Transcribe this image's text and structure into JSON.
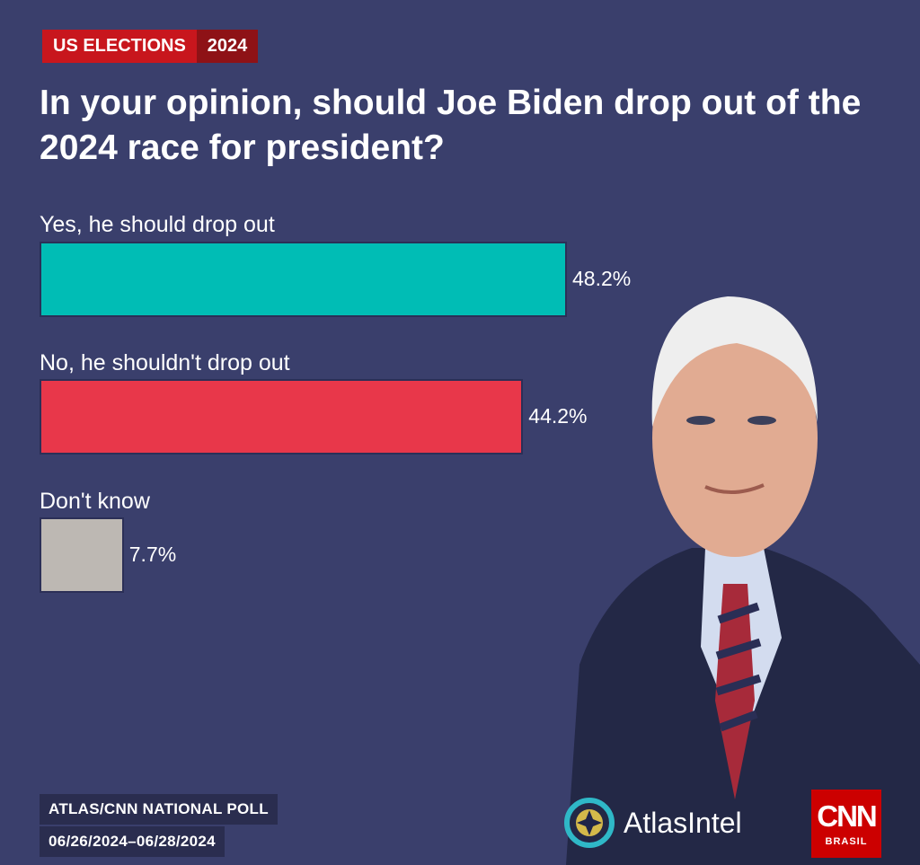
{
  "tag": {
    "main": "US ELECTIONS",
    "year": "2024"
  },
  "chart_data": {
    "type": "bar",
    "orientation": "horizontal",
    "title": "In your opinion, should Joe Biden drop out of the 2024 race for president?",
    "categories": [
      "Yes, he should drop out",
      "No, he shouldn't drop out",
      "Don't know"
    ],
    "values": [
      48.2,
      44.2,
      7.7
    ],
    "value_labels": [
      "48.2%",
      "44.2%",
      "7.7%"
    ],
    "colors": [
      "#00bdb5",
      "#e8374a",
      "#bdb8b3"
    ],
    "xlim": [
      0,
      100
    ]
  },
  "footer": {
    "source": "ATLAS/CNN NATIONAL POLL",
    "dates": "06/26/2024–06/28/2024"
  },
  "brands": {
    "atlas": "AtlasIntel",
    "cnn": "CNN",
    "cnn_sub": "BRASIL"
  }
}
